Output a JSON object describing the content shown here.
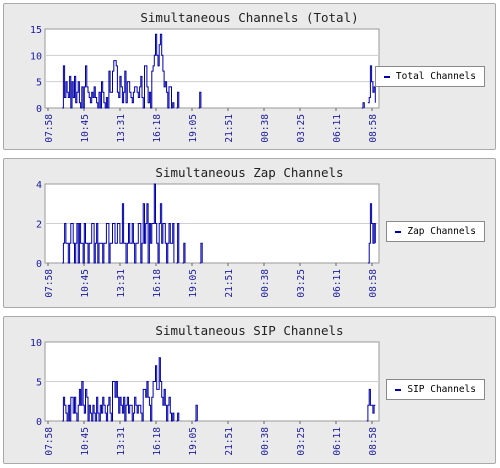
{
  "chart_data": [
    {
      "type": "line",
      "title": "Simultaneous Channels (Total)",
      "series": [
        {
          "name": "Total Channels",
          "color": "#0000aa"
        }
      ],
      "ylim": [
        0,
        15
      ],
      "yticks": [
        0,
        5,
        10,
        15
      ],
      "xticks": [
        "07:58",
        "10:45",
        "13:31",
        "16:18",
        "19:05",
        "21:51",
        "00:38",
        "03:25",
        "06:11",
        "08:58"
      ],
      "points": [
        [
          14,
          0
        ],
        [
          15,
          8
        ],
        [
          16,
          2
        ],
        [
          17,
          5
        ],
        [
          18,
          3
        ],
        [
          19,
          2
        ],
        [
          20,
          6
        ],
        [
          21,
          0
        ],
        [
          22,
          5
        ],
        [
          23,
          2
        ],
        [
          24,
          6
        ],
        [
          25,
          1
        ],
        [
          26,
          3
        ],
        [
          27,
          5
        ],
        [
          28,
          1
        ],
        [
          29,
          0
        ],
        [
          30,
          4
        ],
        [
          31,
          0
        ],
        [
          32,
          4
        ],
        [
          33,
          8
        ],
        [
          34,
          4
        ],
        [
          35,
          3
        ],
        [
          36,
          2
        ],
        [
          37,
          1
        ],
        [
          38,
          3
        ],
        [
          39,
          2
        ],
        [
          40,
          4
        ],
        [
          41,
          2
        ],
        [
          42,
          1
        ],
        [
          43,
          0
        ],
        [
          44,
          3
        ],
        [
          45,
          0
        ],
        [
          46,
          5
        ],
        [
          47,
          3
        ],
        [
          48,
          1
        ],
        [
          49,
          0
        ],
        [
          50,
          2
        ],
        [
          51,
          0
        ],
        [
          52,
          7
        ],
        [
          53,
          3
        ],
        [
          54,
          3
        ],
        [
          55,
          7
        ],
        [
          56,
          9
        ],
        [
          57,
          9
        ],
        [
          58,
          8
        ],
        [
          59,
          3
        ],
        [
          60,
          2
        ],
        [
          61,
          6
        ],
        [
          62,
          4
        ],
        [
          63,
          1
        ],
        [
          64,
          3
        ],
        [
          65,
          7
        ],
        [
          66,
          1
        ],
        [
          67,
          5
        ],
        [
          68,
          5
        ],
        [
          69,
          3
        ],
        [
          70,
          2
        ],
        [
          71,
          1
        ],
        [
          72,
          3
        ],
        [
          73,
          4
        ],
        [
          74,
          4
        ],
        [
          75,
          3
        ],
        [
          76,
          2
        ],
        [
          77,
          4
        ],
        [
          78,
          6
        ],
        [
          79,
          2
        ],
        [
          80,
          0
        ],
        [
          81,
          8
        ],
        [
          82,
          8
        ],
        [
          83,
          4
        ],
        [
          84,
          1
        ],
        [
          85,
          3
        ],
        [
          86,
          0
        ],
        [
          87,
          7
        ],
        [
          88,
          8
        ],
        [
          89,
          10
        ],
        [
          90,
          14
        ],
        [
          91,
          10
        ],
        [
          92,
          8
        ],
        [
          93,
          12
        ],
        [
          94,
          14
        ],
        [
          95,
          10
        ],
        [
          96,
          7
        ],
        [
          97,
          4
        ],
        [
          98,
          5
        ],
        [
          99,
          3
        ],
        [
          100,
          0
        ],
        [
          101,
          4
        ],
        [
          102,
          4
        ],
        [
          103,
          0
        ],
        [
          104,
          1
        ],
        [
          105,
          0
        ],
        [
          107,
          0
        ],
        [
          108,
          3
        ],
        [
          109,
          0
        ],
        [
          125,
          0
        ],
        [
          126,
          3
        ],
        [
          127,
          0
        ],
        [
          258,
          0
        ],
        [
          259,
          1
        ],
        [
          260,
          0
        ],
        [
          263,
          1
        ],
        [
          264,
          2
        ],
        [
          265,
          8
        ],
        [
          266,
          5
        ],
        [
          267,
          3
        ],
        [
          268,
          4
        ],
        [
          269,
          1
        ]
      ]
    },
    {
      "type": "line",
      "title": "Simultaneous Zap Channels",
      "series": [
        {
          "name": "Zap Channels",
          "color": "#0000aa"
        }
      ],
      "ylim": [
        0,
        4
      ],
      "yticks": [
        0,
        2,
        4
      ],
      "xticks": [
        "07:58",
        "10:45",
        "13:31",
        "16:18",
        "19:05",
        "21:51",
        "00:38",
        "03:25",
        "06:11",
        "08:58"
      ],
      "points": [
        [
          14,
          0
        ],
        [
          15,
          1
        ],
        [
          16,
          2
        ],
        [
          17,
          1
        ],
        [
          18,
          1
        ],
        [
          19,
          0
        ],
        [
          20,
          1
        ],
        [
          21,
          2
        ],
        [
          22,
          2
        ],
        [
          23,
          1
        ],
        [
          24,
          0
        ],
        [
          25,
          1
        ],
        [
          26,
          2
        ],
        [
          27,
          0
        ],
        [
          28,
          2
        ],
        [
          29,
          1
        ],
        [
          30,
          1
        ],
        [
          31,
          0
        ],
        [
          32,
          2
        ],
        [
          33,
          1
        ],
        [
          34,
          1
        ],
        [
          35,
          0
        ],
        [
          36,
          1
        ],
        [
          37,
          1
        ],
        [
          38,
          2
        ],
        [
          39,
          2
        ],
        [
          40,
          0
        ],
        [
          41,
          1
        ],
        [
          42,
          2
        ],
        [
          43,
          0
        ],
        [
          44,
          1
        ],
        [
          45,
          1
        ],
        [
          46,
          1
        ],
        [
          47,
          0
        ],
        [
          48,
          1
        ],
        [
          49,
          1
        ],
        [
          50,
          2
        ],
        [
          51,
          2
        ],
        [
          52,
          0
        ],
        [
          53,
          1
        ],
        [
          54,
          1
        ],
        [
          55,
          2
        ],
        [
          56,
          2
        ],
        [
          57,
          1
        ],
        [
          58,
          1
        ],
        [
          59,
          2
        ],
        [
          60,
          2
        ],
        [
          61,
          1
        ],
        [
          62,
          1
        ],
        [
          63,
          3
        ],
        [
          64,
          1
        ],
        [
          65,
          1
        ],
        [
          66,
          0
        ],
        [
          67,
          1
        ],
        [
          68,
          2
        ],
        [
          69,
          1
        ],
        [
          70,
          1
        ],
        [
          71,
          2
        ],
        [
          72,
          1
        ],
        [
          73,
          0
        ],
        [
          74,
          1
        ],
        [
          75,
          1
        ],
        [
          76,
          2
        ],
        [
          77,
          2
        ],
        [
          78,
          0
        ],
        [
          79,
          1
        ],
        [
          80,
          3
        ],
        [
          81,
          1
        ],
        [
          82,
          2
        ],
        [
          83,
          3
        ],
        [
          84,
          0
        ],
        [
          85,
          2
        ],
        [
          86,
          1
        ],
        [
          87,
          2
        ],
        [
          88,
          2
        ],
        [
          89,
          4
        ],
        [
          90,
          2
        ],
        [
          91,
          1
        ],
        [
          92,
          0
        ],
        [
          93,
          2
        ],
        [
          94,
          3
        ],
        [
          95,
          1
        ],
        [
          96,
          2
        ],
        [
          97,
          2
        ],
        [
          98,
          1
        ],
        [
          99,
          0
        ],
        [
          100,
          1
        ],
        [
          101,
          2
        ],
        [
          102,
          1
        ],
        [
          103,
          1
        ],
        [
          104,
          2
        ],
        [
          105,
          0
        ],
        [
          107,
          0
        ],
        [
          108,
          2
        ],
        [
          109,
          0
        ],
        [
          112,
          0
        ],
        [
          113,
          1
        ],
        [
          114,
          0
        ],
        [
          126,
          0
        ],
        [
          127,
          1
        ],
        [
          128,
          0
        ],
        [
          263,
          0
        ],
        [
          264,
          1
        ],
        [
          265,
          3
        ],
        [
          266,
          2
        ],
        [
          267,
          1
        ],
        [
          268,
          2
        ],
        [
          269,
          1
        ]
      ]
    },
    {
      "type": "line",
      "title": "Simultaneous SIP Channels",
      "series": [
        {
          "name": "SIP Channels",
          "color": "#0000aa"
        }
      ],
      "ylim": [
        0,
        10
      ],
      "yticks": [
        0,
        5,
        10
      ],
      "xticks": [
        "07:58",
        "10:45",
        "13:31",
        "16:18",
        "19:05",
        "21:51",
        "00:38",
        "03:25",
        "06:11",
        "08:58"
      ],
      "points": [
        [
          14,
          0
        ],
        [
          15,
          3
        ],
        [
          16,
          2
        ],
        [
          17,
          1
        ],
        [
          18,
          0
        ],
        [
          19,
          2
        ],
        [
          20,
          0
        ],
        [
          21,
          3
        ],
        [
          22,
          3
        ],
        [
          23,
          1
        ],
        [
          24,
          3
        ],
        [
          25,
          1
        ],
        [
          26,
          0
        ],
        [
          27,
          2
        ],
        [
          28,
          4
        ],
        [
          29,
          2
        ],
        [
          30,
          5
        ],
        [
          31,
          2
        ],
        [
          32,
          1
        ],
        [
          33,
          4
        ],
        [
          34,
          3
        ],
        [
          35,
          0
        ],
        [
          36,
          2
        ],
        [
          37,
          1
        ],
        [
          38,
          0
        ],
        [
          39,
          2
        ],
        [
          40,
          1
        ],
        [
          41,
          0
        ],
        [
          42,
          3
        ],
        [
          43,
          1
        ],
        [
          44,
          0
        ],
        [
          45,
          2
        ],
        [
          46,
          1
        ],
        [
          47,
          3
        ],
        [
          48,
          2
        ],
        [
          49,
          1
        ],
        [
          50,
          0
        ],
        [
          51,
          2
        ],
        [
          52,
          3
        ],
        [
          53,
          1
        ],
        [
          54,
          0
        ],
        [
          55,
          5
        ],
        [
          56,
          5
        ],
        [
          57,
          3
        ],
        [
          58,
          5
        ],
        [
          59,
          3
        ],
        [
          60,
          1
        ],
        [
          61,
          3
        ],
        [
          62,
          2
        ],
        [
          63,
          1
        ],
        [
          64,
          3
        ],
        [
          65,
          0
        ],
        [
          66,
          2
        ],
        [
          67,
          3
        ],
        [
          68,
          1
        ],
        [
          69,
          2
        ],
        [
          70,
          2
        ],
        [
          71,
          0
        ],
        [
          72,
          1
        ],
        [
          73,
          3
        ],
        [
          74,
          2
        ],
        [
          75,
          1
        ],
        [
          76,
          2
        ],
        [
          77,
          2
        ],
        [
          78,
          1
        ],
        [
          79,
          0
        ],
        [
          80,
          4
        ],
        [
          81,
          4
        ],
        [
          82,
          3
        ],
        [
          83,
          5
        ],
        [
          84,
          3
        ],
        [
          85,
          2
        ],
        [
          86,
          0
        ],
        [
          87,
          3
        ],
        [
          88,
          5
        ],
        [
          89,
          5
        ],
        [
          90,
          7
        ],
        [
          91,
          4
        ],
        [
          92,
          4
        ],
        [
          93,
          8
        ],
        [
          94,
          5
        ],
        [
          95,
          3
        ],
        [
          96,
          2
        ],
        [
          97,
          4
        ],
        [
          98,
          2
        ],
        [
          99,
          0
        ],
        [
          100,
          2
        ],
        [
          101,
          3
        ],
        [
          102,
          1
        ],
        [
          103,
          0
        ],
        [
          104,
          1
        ],
        [
          105,
          0
        ],
        [
          107,
          0
        ],
        [
          108,
          1
        ],
        [
          109,
          0
        ],
        [
          122,
          0
        ],
        [
          123,
          2
        ],
        [
          124,
          0
        ],
        [
          262,
          0
        ],
        [
          263,
          2
        ],
        [
          264,
          4
        ],
        [
          265,
          2
        ],
        [
          266,
          2
        ],
        [
          267,
          1
        ],
        [
          268,
          2
        ],
        [
          269,
          2
        ]
      ]
    }
  ]
}
